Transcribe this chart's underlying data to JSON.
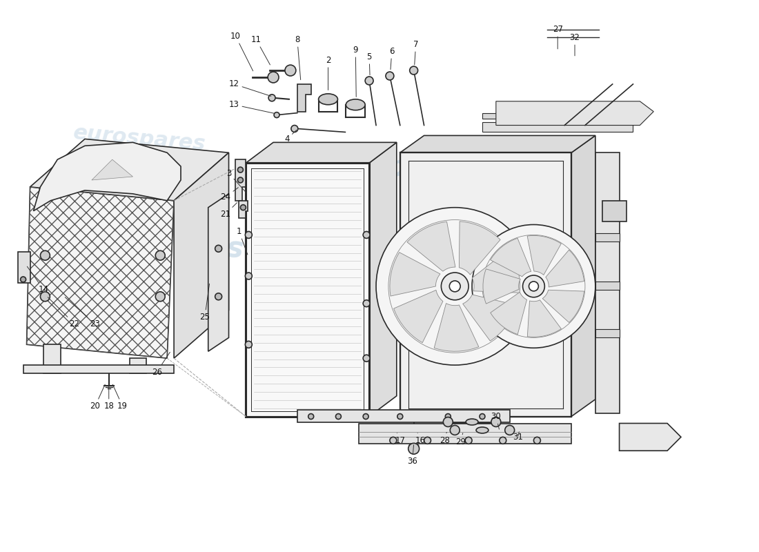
{
  "background_color": "#ffffff",
  "line_color": "#2a2a2a",
  "light_line": "#666666",
  "watermark_color": "#b8cfe0",
  "watermark_text": "eurospares",
  "label_fontsize": 8.5,
  "watermark_fontsize": 30
}
